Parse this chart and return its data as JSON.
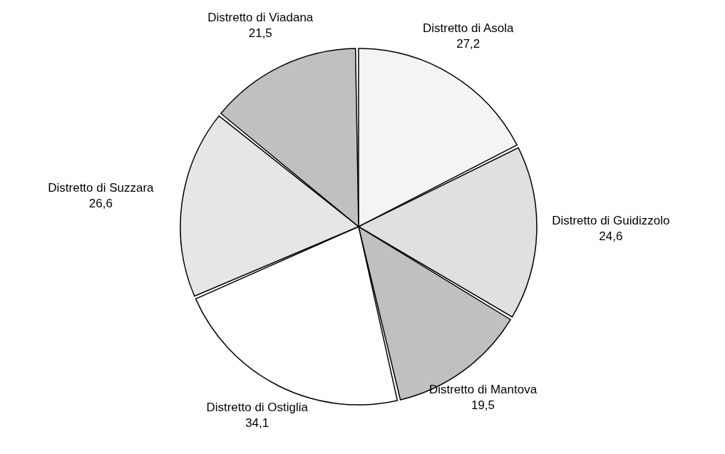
{
  "chart_data": {
    "type": "pie",
    "categories": [
      "Distretto di Asola",
      "Distretto di Guidizzolo",
      "Distretto di Mantova",
      "Distretto di Ostiglia",
      "Distretto di Suzzara",
      "Distretto di Viadana"
    ],
    "values": [
      27.2,
      24.6,
      19.5,
      34.1,
      26.6,
      21.5
    ],
    "value_labels": [
      "27,2",
      "24,6",
      "19,5",
      "34,1",
      "26,6",
      "21,5"
    ],
    "colors": [
      "#f4f4f4",
      "#e0e0e0",
      "#c0c0c0",
      "#ffffff",
      "#e6e6e6",
      "#c0c0c0"
    ]
  }
}
